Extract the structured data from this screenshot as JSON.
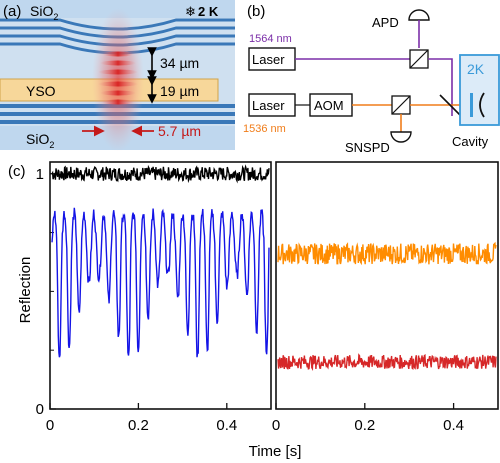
{
  "figure": {
    "panel_a": {
      "label": "(a)",
      "sio2_top": "SiO",
      "sio2_top_sub": "2",
      "temperature": "2 K",
      "snowflake_icon": "snowflake-icon",
      "yso": "YSO",
      "sio2_bottom": "SiO",
      "sio2_bottom_sub": "2",
      "gap_label": "34 µm",
      "yso_thickness": "19 µm",
      "waist_label": "5.7 µm"
    },
    "panel_b": {
      "label": "(b)",
      "apd": "APD",
      "laser_top": "Laser",
      "wavelength_top": "1564 nm",
      "laser_bottom": "Laser",
      "aom": "AOM",
      "wavelength_bottom": "1536 nm",
      "snspd": "SNSPD",
      "cryostat": "2K",
      "cavity": "Cavity"
    },
    "colors": {
      "purple": "#7b2fa8",
      "orange": "#f07d1a",
      "red_text": "#c41a1a",
      "cryo_blue": "#3a9ad9",
      "cryo_fill": "#dcebf8",
      "trace_black": "#000000",
      "trace_blue": "#1414e6",
      "trace_orange": "#ff8c00",
      "trace_red": "#d62728"
    }
  },
  "chart_data": {
    "panel_label": "(c)",
    "type": "line",
    "ylabel": "Reflection",
    "xlabel": "Time [s]",
    "ylim": [
      0,
      1.05
    ],
    "yticks": [
      0,
      1
    ],
    "ytick_labels": [
      "0",
      "1"
    ],
    "panels": [
      {
        "xlim": [
          0,
          0.5
        ],
        "xticks": [
          0,
          0.2,
          0.4
        ],
        "xtick_labels": [
          "0",
          "0.2",
          "0.4"
        ],
        "series": [
          {
            "color": "#000000",
            "mean": 1.0,
            "spread": 0.03,
            "kind": "noise"
          },
          {
            "color": "#1414e6",
            "mean": 0.7,
            "spread": 0.2,
            "kind": "oscillating",
            "min": 0.22,
            "max": 0.94
          }
        ]
      },
      {
        "xlim": [
          0,
          0.5
        ],
        "xticks": [
          0,
          0.2,
          0.4
        ],
        "xtick_labels": [
          "0",
          "0.2",
          "0.4"
        ],
        "series": [
          {
            "color": "#ff8c00",
            "mean": 0.66,
            "spread": 0.045,
            "kind": "noise"
          },
          {
            "color": "#d62728",
            "mean": 0.2,
            "spread": 0.03,
            "kind": "noise"
          }
        ]
      }
    ]
  }
}
